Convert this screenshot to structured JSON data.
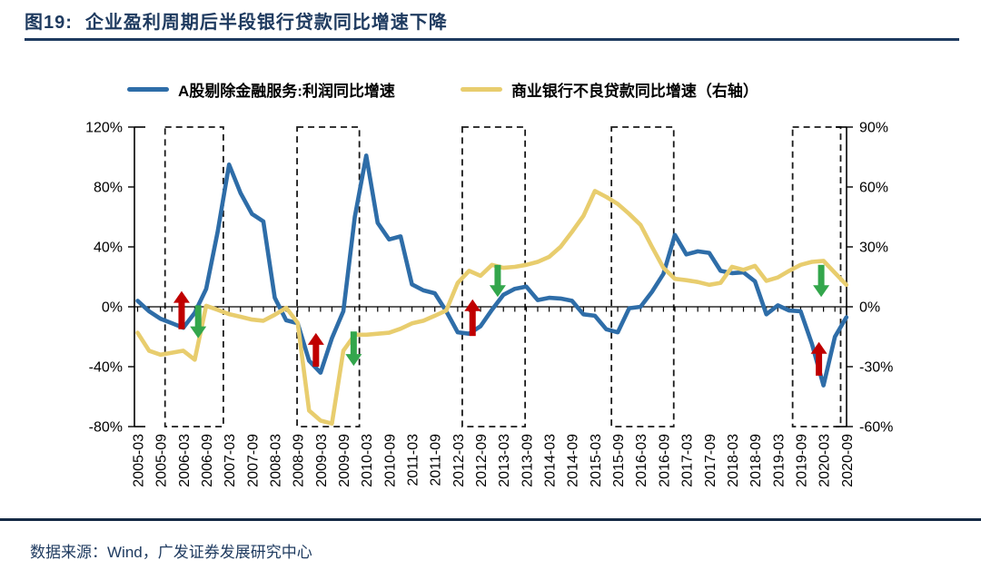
{
  "figure": {
    "title_prefix": "图19:",
    "title_text": "企业盈利周期后半段银行贷款同比增速下降",
    "source": "数据来源：Wind，广发证券发展研究中心"
  },
  "legend": {
    "items": [
      {
        "label": "A股剔除金融服务:利润同比增速",
        "color": "#2E6DA8"
      },
      {
        "label": "商业银行不良贷款同比增速（右轴）",
        "color": "#E8CD6E"
      }
    ]
  },
  "colors": {
    "profit_line": "#2E6DA8",
    "npl_line": "#E8CD6E",
    "up_arrow": "#C00000",
    "down_arrow": "#33A64C",
    "title_navy": "#1e3a5f",
    "axis": "#000000",
    "highlight_box": "#1a1a1a"
  },
  "chart_data": {
    "type": "line",
    "x_start": "2005-03",
    "x_interval": "quarterly",
    "x_labels": [
      "2005-03",
      "2005-09",
      "2006-03",
      "2006-09",
      "2007-03",
      "2007-09",
      "2008-03",
      "2008-09",
      "2009-03",
      "2009-09",
      "2010-03",
      "2010-09",
      "2011-03",
      "2011-09",
      "2012-03",
      "2012-09",
      "2013-03",
      "2013-09",
      "2014-03",
      "2014-09",
      "2015-03",
      "2015-09",
      "2016-03",
      "2016-09",
      "2017-03",
      "2017-09",
      "2018-03",
      "2018-09",
      "2019-03",
      "2019-09",
      "2020-03",
      "2020-09"
    ],
    "left_axis": {
      "tick_labels": [
        "120%",
        "80%",
        "40%",
        "0%",
        "-40%",
        "-80%"
      ],
      "tick_values": [
        120,
        80,
        40,
        0,
        -40,
        -80
      ],
      "max": 120,
      "min": -80
    },
    "right_axis": {
      "tick_labels": [
        "90%",
        "60%",
        "30%",
        "0%",
        "-30%",
        "-60%"
      ],
      "tick_values": [
        90,
        60,
        30,
        0,
        -30,
        -60
      ],
      "max": 90,
      "min": -60
    },
    "series": [
      {
        "name": "A股剔除金融服务:利润同比增速",
        "axis": "left",
        "color": "#2E6DA8",
        "values": [
          4,
          -3,
          -8,
          -11,
          -14,
          -4,
          12,
          50,
          95,
          76,
          62,
          57,
          6,
          -9,
          -11,
          -36,
          -44,
          -21,
          -3,
          60,
          101,
          56,
          45,
          47,
          15,
          11,
          9,
          -3,
          -17,
          -18,
          -13,
          -2,
          8,
          12,
          13.5,
          4.5,
          6,
          5.5,
          4,
          -5,
          -6,
          -15,
          -17,
          -1,
          0,
          10,
          22,
          48,
          35,
          37,
          36,
          24,
          22.5,
          23,
          17,
          -5,
          1,
          -2.5,
          -3,
          -25,
          -52.5,
          -20,
          -7
        ]
      },
      {
        "name": "商业银行不良贷款同比增速（右轴）",
        "axis": "right",
        "color": "#E8CD6E",
        "values": [
          -13,
          -22,
          -24,
          -23,
          -22,
          -26.5,
          0.5,
          -1.5,
          -3.7,
          -5,
          -6.4,
          -7,
          -4,
          -0.5,
          -8,
          -52,
          -57,
          -58.5,
          -22,
          -14,
          -14,
          -13.5,
          -13,
          -11,
          -8.3,
          -7,
          -4.5,
          -1.8,
          12,
          18,
          15.5,
          21,
          19.5,
          20,
          21,
          22.5,
          25,
          30,
          37.5,
          45.5,
          58,
          55,
          51.5,
          46.5,
          41,
          30,
          19.5,
          14,
          13.3,
          12.4,
          11,
          12,
          20,
          18.5,
          20.5,
          13,
          14.7,
          18,
          21,
          22.5,
          23,
          17,
          11
        ]
      }
    ],
    "highlight_boxes": [
      {
        "from_index": 2.4,
        "to_index": 7.5
      },
      {
        "from_index": 13.95,
        "to_index": 19.4
      },
      {
        "from_index": 28.4,
        "to_index": 33.9
      },
      {
        "from_index": 41.45,
        "to_index": 46.9
      },
      {
        "from_index": 57.3,
        "to_index": 61.5
      }
    ],
    "arrows": [
      {
        "at_index": 3.85,
        "direction": "up",
        "from_value": -15,
        "to_value": 10.5,
        "color": "#C00000"
      },
      {
        "at_index": 5.3,
        "direction": "down",
        "from_value": 1,
        "to_value": -21,
        "color": "#33A64C"
      },
      {
        "at_index": 15.6,
        "direction": "up",
        "from_value": -40,
        "to_value": -17.5,
        "color": "#C00000"
      },
      {
        "at_index": 18.9,
        "direction": "down",
        "from_value": -16.5,
        "to_value": -39.5,
        "color": "#33A64C"
      },
      {
        "at_index": 29.3,
        "direction": "up",
        "from_value": -19.5,
        "to_value": 5,
        "color": "#C00000"
      },
      {
        "at_index": 31.5,
        "direction": "down",
        "from_value": 28,
        "to_value": 6.5,
        "color": "#33A64C"
      },
      {
        "at_index": 59.6,
        "direction": "up",
        "from_value": -46,
        "to_value": -23.5,
        "color": "#C00000"
      },
      {
        "at_index": 59.8,
        "direction": "down",
        "from_value": 28,
        "to_value": 6.5,
        "color": "#33A64C"
      }
    ],
    "grid": "none",
    "legend_position": "top"
  }
}
